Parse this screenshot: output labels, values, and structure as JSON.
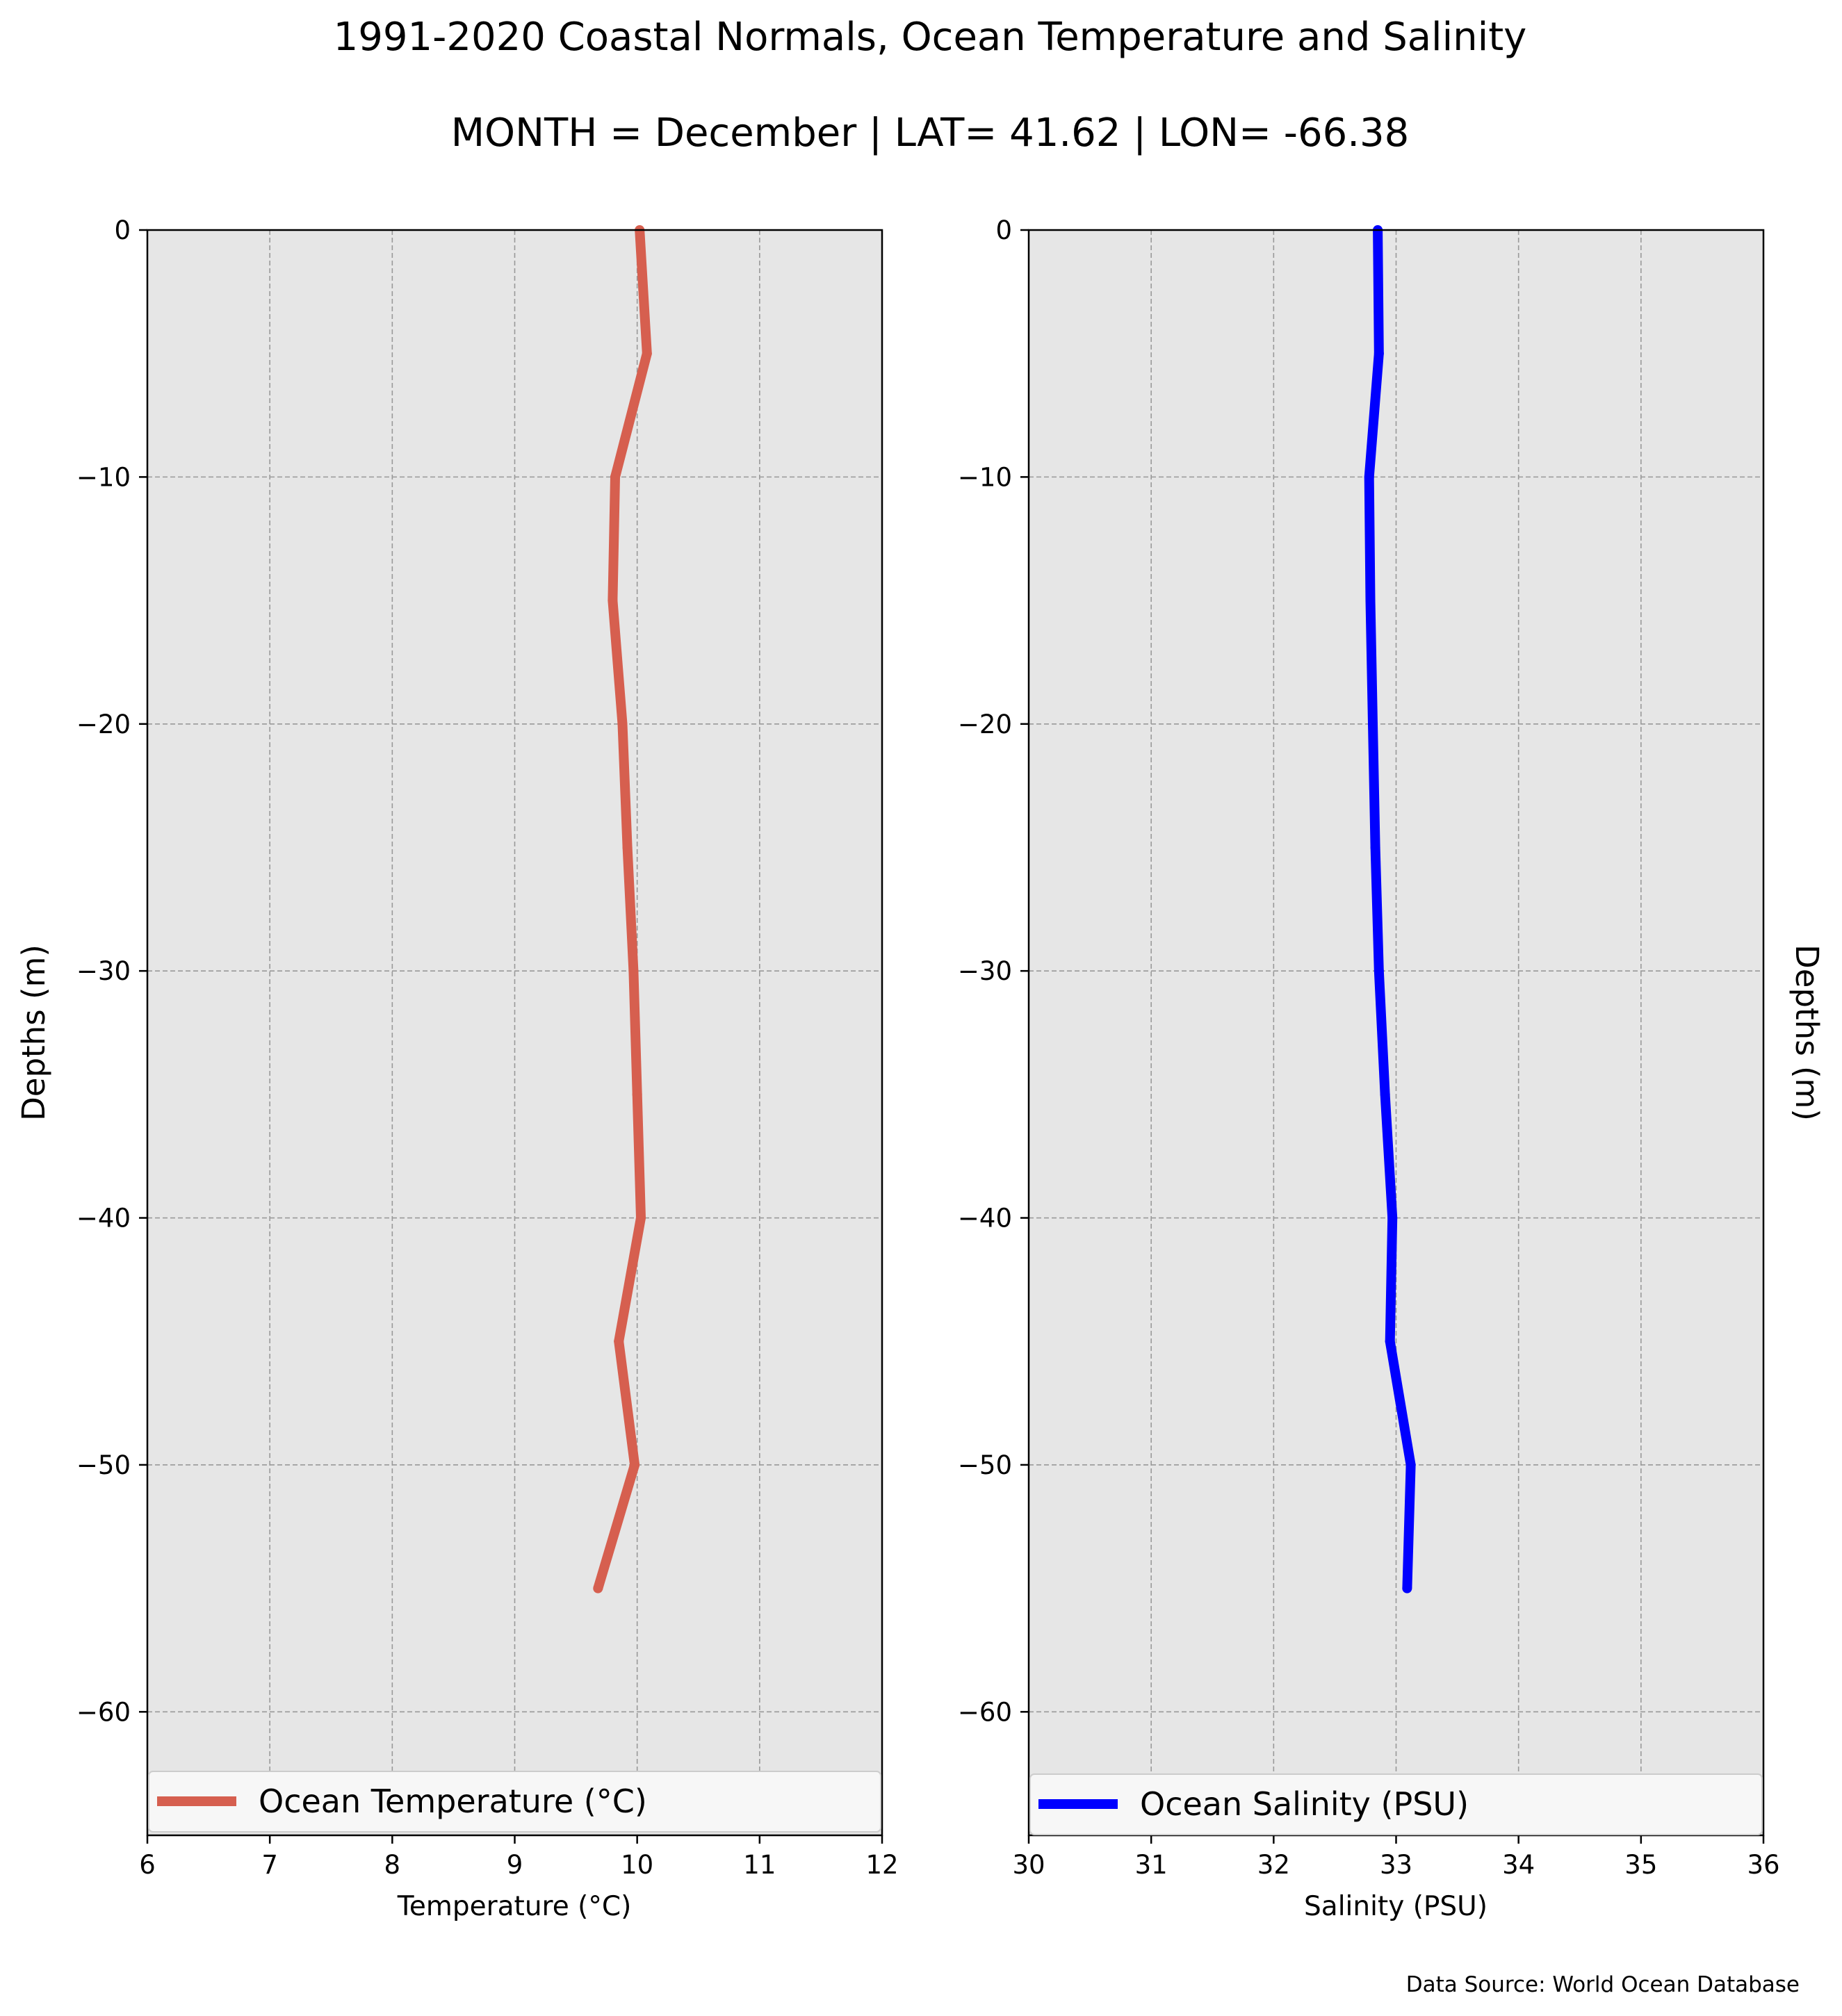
{
  "figure": {
    "title": "1991-2020 Coastal Normals, Ocean Temperature and Salinity",
    "subtitle": "MONTH = December | LAT= 41.62 | LON= -66.38",
    "source": "Data Source: World Ocean Database",
    "panel_background": "#e6e6e6",
    "grid_color": "#999999"
  },
  "chart_data": [
    {
      "type": "line",
      "title": "",
      "xlabel": "Temperature ($^\\circ$C)",
      "xlabel_display": "Temperature (°C)",
      "ylabel": "Depths (m)",
      "xlim": [
        6,
        12
      ],
      "ylim": [
        -65,
        0
      ],
      "xticks": [
        6,
        7,
        8,
        9,
        10,
        11,
        12
      ],
      "xtick_labels": [
        "6",
        "7",
        "8",
        "9",
        "10",
        "11",
        "12"
      ],
      "yticks": [
        0,
        -10,
        -20,
        -30,
        -40,
        -50,
        -60
      ],
      "ytick_labels": [
        "0",
        "−10",
        "−20",
        "−30",
        "−40",
        "−50",
        "−60"
      ],
      "grid": true,
      "legend_position": "lower center",
      "series": [
        {
          "name": "Ocean Temperature ($^\\circ$C)",
          "label_display": "Ocean Temperature (°C)",
          "color": "#d65f4f",
          "depth": [
            0,
            -5,
            -10,
            -15,
            -20,
            -25,
            -30,
            -35,
            -40,
            -45,
            -50,
            -55
          ],
          "values": [
            10.02,
            10.08,
            9.82,
            9.8,
            9.88,
            9.92,
            9.97,
            10.0,
            10.03,
            9.85,
            9.98,
            9.68
          ]
        }
      ]
    },
    {
      "type": "line",
      "title": "",
      "xlabel": "Salinity (PSU)",
      "ylabel": "Depths (m)",
      "xlim": [
        30,
        36
      ],
      "ylim": [
        -65,
        0
      ],
      "xticks": [
        30,
        31,
        32,
        33,
        34,
        35,
        36
      ],
      "xtick_labels": [
        "30",
        "31",
        "32",
        "33",
        "34",
        "35",
        "36"
      ],
      "yticks": [
        0,
        -10,
        -20,
        -30,
        -40,
        -50,
        -60
      ],
      "ytick_labels": [
        "0",
        "−10",
        "−20",
        "−30",
        "−40",
        "−50",
        "−60"
      ],
      "grid": true,
      "legend_position": "lower center",
      "series": [
        {
          "name": "Ocean Salinity (PSU)",
          "color": "#0000ff",
          "depth": [
            0,
            -5,
            -10,
            -15,
            -20,
            -25,
            -30,
            -35,
            -40,
            -45,
            -50,
            -55
          ],
          "values": [
            32.85,
            32.86,
            32.78,
            32.79,
            32.81,
            32.83,
            32.86,
            32.91,
            32.97,
            32.95,
            33.12,
            33.09
          ]
        }
      ]
    }
  ]
}
